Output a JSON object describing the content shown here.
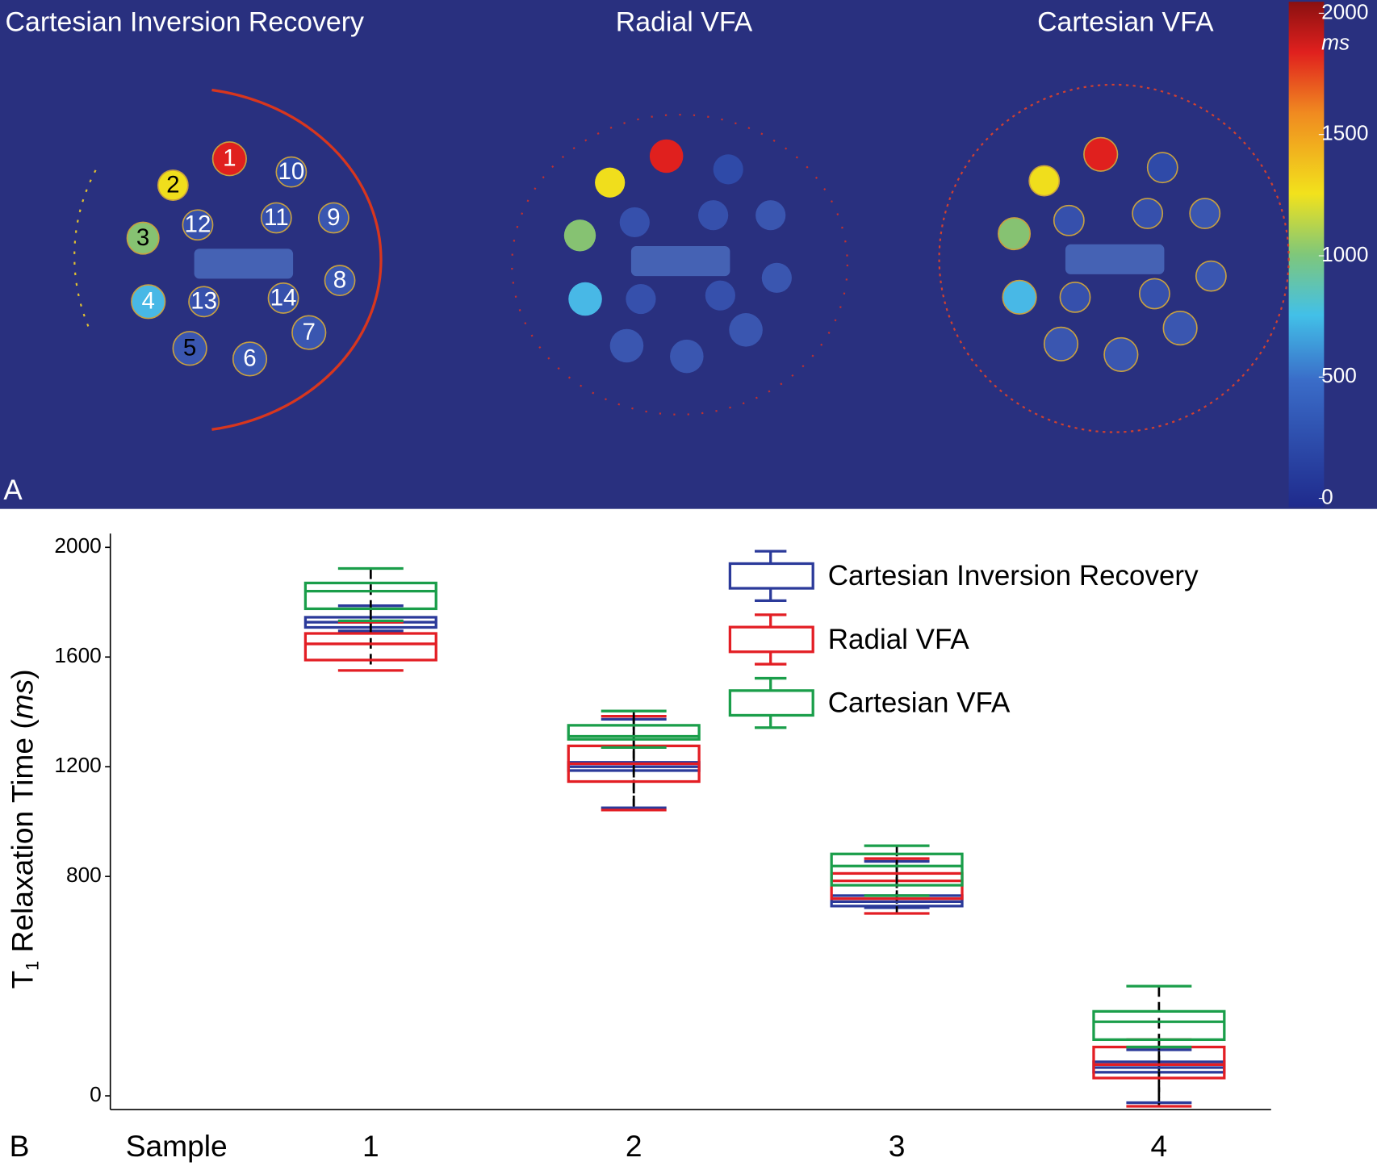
{
  "panel_a": {
    "label": "A",
    "titles": [
      "Cartesian Inversion Recovery",
      "Radial VFA",
      "Cartesian  VFA"
    ],
    "sample_labels": [
      "1",
      "2",
      "3",
      "4",
      "5",
      "6",
      "7",
      "8",
      "9",
      "10",
      "11",
      "12",
      "13",
      "14"
    ],
    "colorbar": {
      "unit": "ms",
      "clim": [
        0,
        2000
      ],
      "ticks": [
        0,
        500,
        1000,
        1500,
        2000
      ]
    }
  },
  "chart_data": {
    "type": "box",
    "panel_label": "B",
    "x_label": "Sample",
    "y_label_parts": [
      "T",
      "1",
      " Relaxation Time (",
      "ms",
      ")"
    ],
    "categories": [
      "1",
      "2",
      "3",
      "4"
    ],
    "ylim": [
      -50,
      2050
    ],
    "yticks": [
      0,
      800,
      1200,
      1600,
      2000
    ],
    "legend": "upper right",
    "series": [
      {
        "name": "Cartesian Inversion Recovery",
        "color": "#2b3a9a",
        "min": [
          1695,
          1050,
          686,
          -25
        ],
        "q1": [
          1708,
          1186,
          692,
          86
        ],
        "median": [
          1727,
          1200,
          708,
          103
        ],
        "q3": [
          1745,
          1216,
          730,
          124
        ],
        "max": [
          1787,
          1373,
          855,
          168
        ]
      },
      {
        "name": "Radial VFA",
        "color": "#e31e24",
        "min": [
          1551,
          1042,
          665,
          -38
        ],
        "q1": [
          1589,
          1146,
          719,
          65
        ],
        "median": [
          1648,
          1211,
          784,
          114
        ],
        "q3": [
          1686,
          1276,
          811,
          178
        ],
        "max": [
          1727,
          1384,
          865,
          205
        ]
      },
      {
        "name": "Cartesian VFA",
        "color": "#1a9e4a",
        "min": [
          1732,
          1270,
          730,
          178
        ],
        "q1": [
          1776,
          1300,
          768,
          205
        ],
        "median": [
          1840,
          1311,
          838,
          270
        ],
        "q3": [
          1870,
          1351,
          882,
          308
        ],
        "max": [
          1923,
          1403,
          912,
          400
        ]
      }
    ]
  }
}
